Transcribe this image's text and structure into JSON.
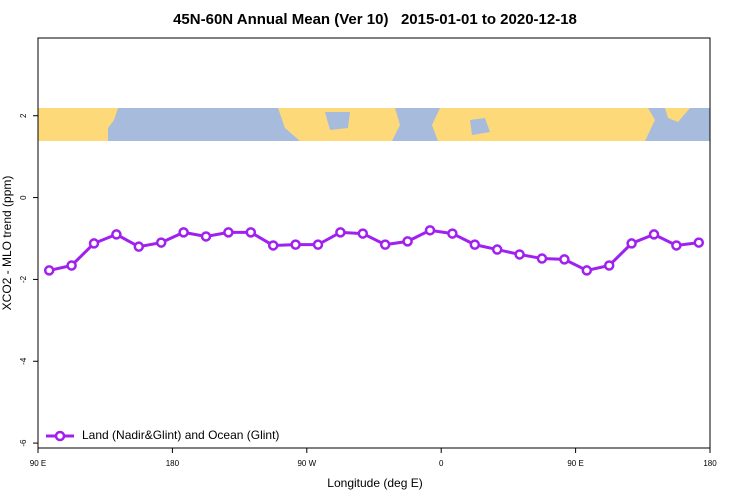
{
  "chart_data": {
    "type": "line",
    "title": "45N-60N Annual Mean (Ver 10)   2015-01-01 to 2020-12-18",
    "x_label": "Longitude (deg E)",
    "y_label": "XCO2 - MLO trend (ppm)",
    "x": [
      97.5,
      112.5,
      127.5,
      142.5,
      157.5,
      172.5,
      187.5,
      202.5,
      217.5,
      232.5,
      247.5,
      262.5,
      277.5,
      292.5,
      307.5,
      322.5,
      337.5,
      352.5,
      367.5,
      382.5,
      397.5,
      412.5,
      427.5,
      442.5,
      457.5,
      472.5,
      487.5,
      502.5,
      517.5,
      532.5
    ],
    "series": [
      {
        "name": "Land (Nadir&Glint) and Ocean (Glint)",
        "color": "#a020f0",
        "values": [
          -1.78,
          -1.66,
          -1.12,
          -0.9,
          -1.2,
          -1.1,
          -0.85,
          -0.95,
          -0.85,
          -0.85,
          -1.17,
          -1.15,
          -1.15,
          -0.85,
          -0.88,
          -1.15,
          -1.07,
          -0.8,
          -0.88,
          -1.15,
          -1.27,
          -1.39,
          -1.49,
          -1.51,
          -1.78,
          -1.66,
          -1.12,
          -0.9,
          -1.17,
          -1.1
        ]
      }
    ],
    "xlim": [
      90,
      540
    ],
    "xticks": [
      {
        "value": 90,
        "label": "90 E"
      },
      180,
      {
        "value": 270,
        "label": "90 W"
      },
      {
        "value": 360,
        "label": "0"
      },
      {
        "value": 450,
        "label": "90 E"
      },
      {
        "value": 540,
        "label": "180"
      }
    ],
    "ylim": [
      -6.12,
      3.9
    ],
    "yticks": [
      -6,
      -4,
      -2,
      0,
      2
    ],
    "legend": "bottom-left"
  }
}
